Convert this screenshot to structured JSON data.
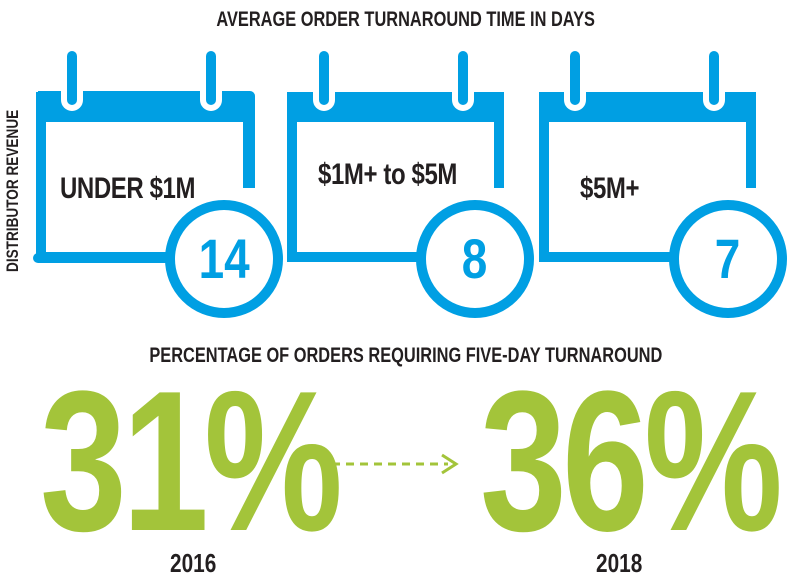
{
  "turnaround": {
    "title": "AVERAGE ORDER TURNAROUND TIME IN DAYS",
    "side_label": "DISTRIBUTOR REVENUE",
    "accent_color": "#009fe3",
    "items": [
      {
        "label": "UNDER $1M",
        "days": "14",
        "icon": "calendar-icon"
      },
      {
        "label": "$1M+ to $5M",
        "days": "8",
        "icon": "calendar-icon"
      },
      {
        "label": "$5M+",
        "days": "7",
        "icon": "calendar-icon"
      }
    ]
  },
  "five_day": {
    "title": "PERCENTAGE OF ORDERS REQUIRING FIVE-DAY TURNAROUND",
    "accent_color": "#a3c43a",
    "from": {
      "value": "31%",
      "year": "2016"
    },
    "to": {
      "value": "36%",
      "year": "2018"
    },
    "arrow_icon": "dashed-arrow-right-icon"
  }
}
